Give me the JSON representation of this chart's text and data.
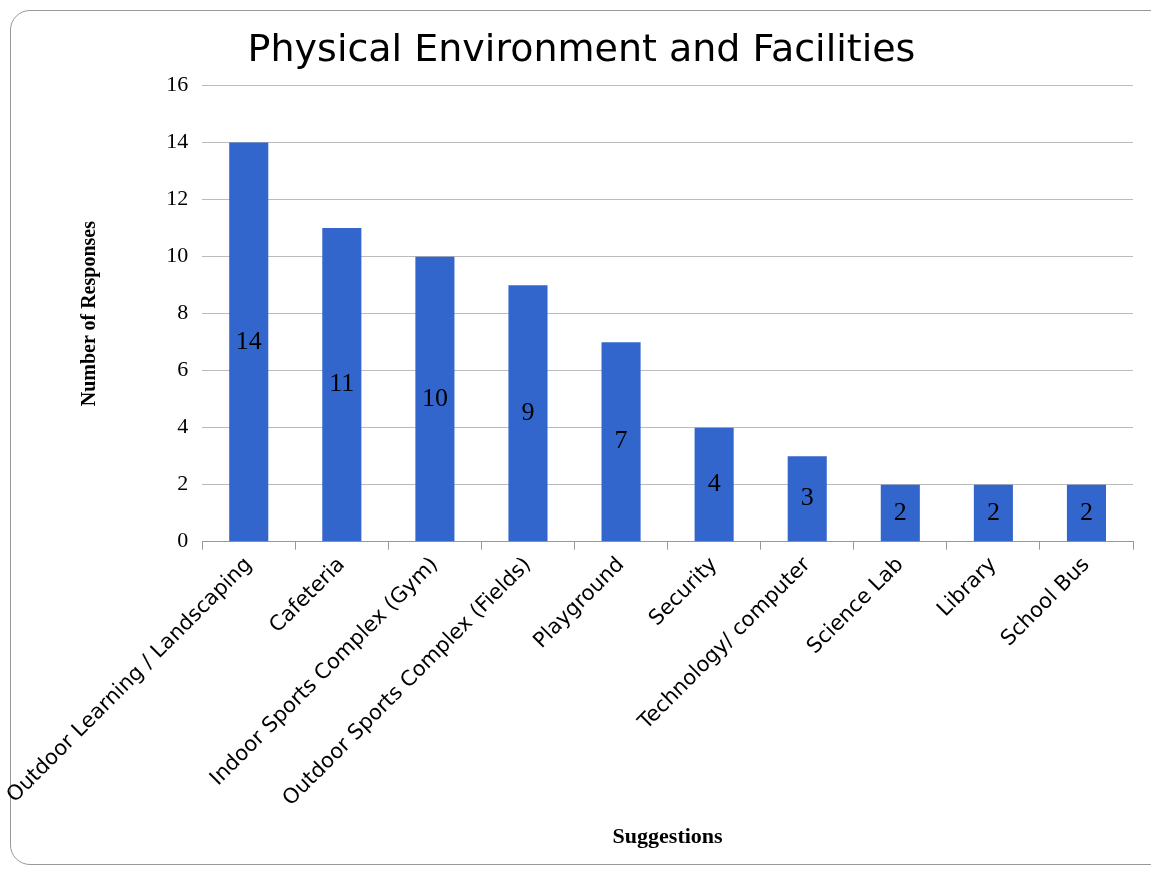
{
  "chart_data": {
    "type": "bar",
    "title": "Physical Environment and Facilities",
    "xlabel": "Suggestions",
    "ylabel": "Number of Responses",
    "categories": [
      "Outdoor Learning / Landscaping",
      "Cafeteria",
      "Indoor Sports Complex (Gym)",
      "Outdoor Sports Complex (Fields)",
      "Playground",
      "Security",
      "Technology/ computer",
      "Science Lab",
      "Library",
      "School Bus"
    ],
    "values": [
      14,
      11,
      10,
      9,
      7,
      4,
      3,
      2,
      2,
      2
    ],
    "color": "#3366cc",
    "ylim": [
      0,
      16
    ],
    "yticks": [
      0,
      2,
      4,
      6,
      8,
      10,
      12,
      14,
      16
    ],
    "grid": "y",
    "data_labels": true
  }
}
